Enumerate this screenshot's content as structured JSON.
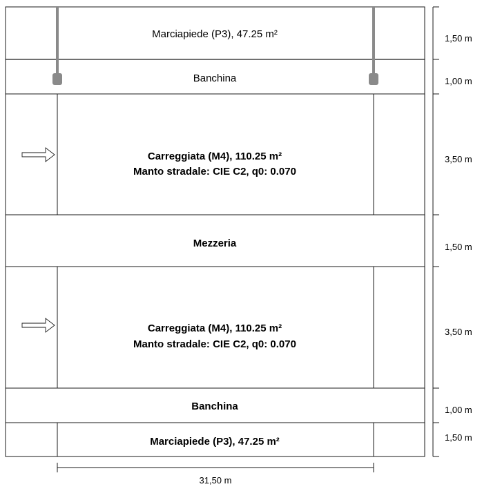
{
  "bands": [
    {
      "id": "sidewalk-top",
      "title": "Marciapiede (P3), 47.25 m²",
      "subtitle": "",
      "height_label": "1,50 m"
    },
    {
      "id": "shoulder-top",
      "title": "Banchina",
      "subtitle": "",
      "height_label": "1,00 m"
    },
    {
      "id": "carriageway-1",
      "title": "Carreggiata (M4), 110.25 m²",
      "subtitle": "Manto stradale: CIE C2, q0: 0.070",
      "height_label": "3,50 m"
    },
    {
      "id": "median",
      "title": "Mezzeria",
      "subtitle": "",
      "height_label": "1,50 m"
    },
    {
      "id": "carriageway-2",
      "title": "Carreggiata (M4), 110.25 m²",
      "subtitle": "Manto stradale: CIE C2, q0: 0.070",
      "height_label": "3,50 m"
    },
    {
      "id": "shoulder-bottom",
      "title": "Banchina",
      "subtitle": "",
      "height_label": "1,00 m"
    },
    {
      "id": "sidewalk-bottom",
      "title": "Marciapiede (P3), 47.25 m²",
      "subtitle": "",
      "height_label": "1,50 m"
    }
  ],
  "width_label": "31,50 m",
  "colors": {
    "line": "#1a1a1a",
    "pole": "#8a8a8a",
    "background": "#ffffff"
  }
}
